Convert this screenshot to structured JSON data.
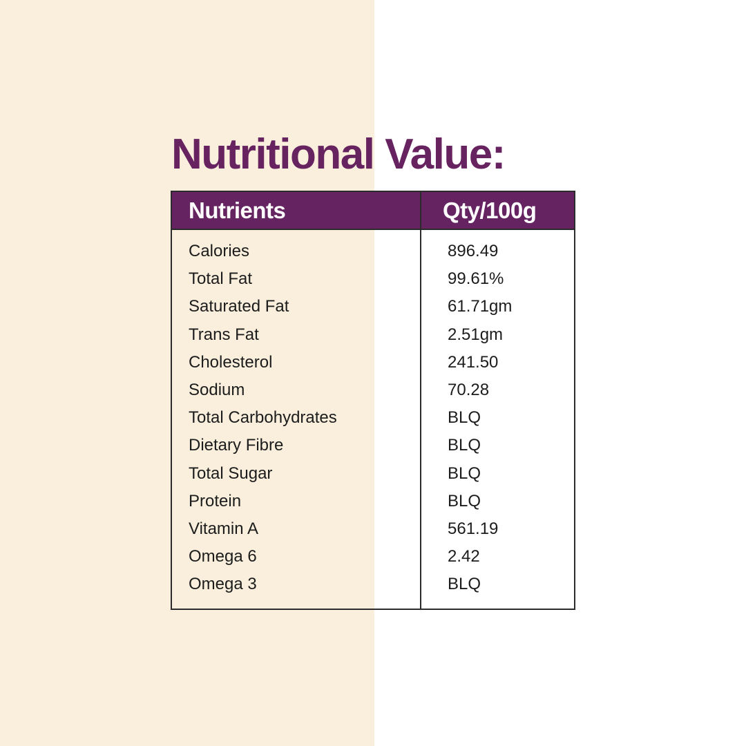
{
  "title": "Nutritional Value:",
  "colors": {
    "accent_purple": "#662361",
    "background_left": "#f9efdc",
    "background_right": "#ffffff",
    "text": "#1c1c1c"
  },
  "table": {
    "headers": {
      "nutrients": "Nutrients",
      "quantity": "Qty/100g"
    },
    "rows": [
      {
        "name": "Calories",
        "qty": "896.49"
      },
      {
        "name": "Total Fat",
        "qty": "99.61%"
      },
      {
        "name": "Saturated Fat",
        "qty": "61.71gm"
      },
      {
        "name": "Trans Fat",
        "qty": "2.51gm"
      },
      {
        "name": "Cholesterol",
        "qty": "241.50"
      },
      {
        "name": "Sodium",
        "qty": "70.28"
      },
      {
        "name": "Total Carbohydrates",
        "qty": "BLQ"
      },
      {
        "name": "Dietary Fibre",
        "qty": "BLQ"
      },
      {
        "name": "Total Sugar",
        "qty": "BLQ"
      },
      {
        "name": "Protein",
        "qty": "BLQ"
      },
      {
        "name": "Vitamin A",
        "qty": "561.19"
      },
      {
        "name": "Omega 6",
        "qty": "2.42"
      },
      {
        "name": "Omega 3",
        "qty": "BLQ"
      }
    ]
  }
}
